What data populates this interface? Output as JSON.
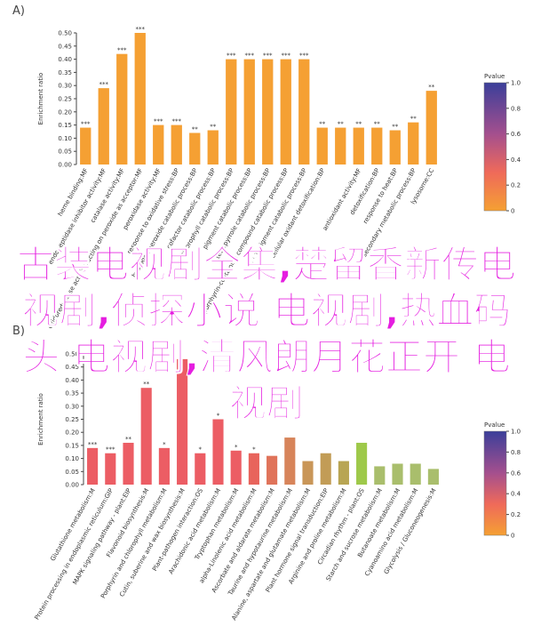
{
  "chart_data": [
    {
      "type": "bar",
      "panel": "A)",
      "ylabel": "Enrichment ratio",
      "color": "#f5a033",
      "categories": [
        "heme binding:MF",
        "endopeptidase inhibitor activity:MF",
        "catalase activity:MF",
        "oxidoreductase activity, acting on peroxide as acceptor:MF",
        "peroxidase activity:MF",
        "response to oxidative stress:BP",
        "hydrogen peroxide catabolic process:BP",
        "cofactor catabolic process:BP",
        "chlorophyll catabolic process:BP",
        "pigment catabolic process:BP",
        "tetrapyrrole catabolic process:BP",
        "porphyrin-containing compound catabolic process:BP",
        "cellular pigment catabolic process:BP",
        "cellular oxidant detoxification:BP",
        null,
        "antioxidant activity:MF",
        "detoxification:BP",
        "response to heat:BP",
        "secondary metabolic process:BP",
        "lysosome:CC"
      ],
      "values": [
        0.14,
        0.29,
        0.42,
        0.5,
        0.15,
        0.15,
        0.12,
        0.13,
        0.4,
        0.4,
        0.4,
        0.4,
        0.4,
        0.14,
        0.14,
        0.14,
        0.14,
        0.13,
        0.16,
        0.28
      ],
      "annotations": [
        "***",
        "***",
        "***",
        "***",
        "***",
        "***",
        "**",
        "**",
        "***",
        "***",
        "***",
        "***",
        "***",
        "**",
        "**",
        "**",
        "**",
        "**",
        "**",
        "**"
      ],
      "ylim": [
        0,
        0.5
      ],
      "yticks": [
        {
          "value": 0,
          "label": "0.00"
        },
        {
          "value": 0.05,
          "label": "0.05"
        },
        {
          "value": 0.1,
          "label": "0.10"
        },
        {
          "value": 0.15,
          "label": "0.15"
        },
        {
          "value": 0.2,
          "label": "0.20"
        },
        {
          "value": 0.25,
          "label": "0.25"
        },
        {
          "value": 0.3,
          "label": "0.30"
        },
        {
          "value": 0.35,
          "label": "0.35"
        },
        {
          "value": 0.4,
          "label": "0.40"
        },
        {
          "value": 0.45,
          "label": "0.45"
        },
        {
          "value": 0.5,
          "label": "0.50"
        }
      ],
      "colorbar": {
        "title": "Pvalue",
        "lim": [
          0,
          1
        ],
        "ticks": [
          0,
          0.2,
          0.4,
          0.6,
          0.8,
          {
            "value": 1,
            "label": "1.0"
          }
        ]
      }
    },
    {
      "type": "bar",
      "panel": "B)",
      "ylabel": "Enrichment ratio",
      "categories": [
        "Glutathione metabolism:M",
        "Protein processing in endoplasmic reticulum:GIP",
        "MAPK signaling pathway - plant:EIP",
        "Flavonoid biosynthesis:M",
        "Porphyrin and chlorophyll metabolism:M",
        "Cutin, suberine and wax biosynthesis:M",
        "Plant-pathogen interaction:OS",
        "Arachidonic acid metabolism:M",
        "Tryptophan metabolism:M",
        "alpha-Linolenic acid metabolism:M",
        "Ascorbate and aldarate metabolism:M",
        "Taurine and hypotaurine metabolism:M",
        "Alanine, aspartate and glutamate metabolism:M",
        "Plant hormone signal transduction:EIP",
        "Arginine and proline metabolism:M",
        "Circadian rhythm - plant:OS",
        "Starch and sucrose metabolism:M",
        "Butanoate metabolism:M",
        "Cyanoamino acid metabolism:M",
        "Glycolysis / Gluconeogenesis:M"
      ],
      "values": [
        0.14,
        0.12,
        0.16,
        0.37,
        0.14,
        0.48,
        0.12,
        0.25,
        0.13,
        0.12,
        0.11,
        0.18,
        0.09,
        0.12,
        0.09,
        0.16,
        0.07,
        0.08,
        0.08,
        0.06
      ],
      "annotations": [
        "***",
        "***",
        "**",
        "**",
        "*",
        null,
        "*",
        "*",
        "*",
        "*",
        null,
        null,
        null,
        null,
        null,
        null,
        null,
        null,
        null,
        null
      ],
      "colors": [
        "#ec5d64",
        "#ec5d64",
        "#ec5d64",
        "#ec5d64",
        "#ec5d64",
        "#ec5d64",
        "#ec5d64",
        "#ec5d64",
        "#ec5d64",
        "#e8645c",
        "#e0735a",
        "#d7845a",
        "#c99658",
        "#c29c56",
        "#b8a553",
        "#9ec94a",
        "#a9be6c",
        "#a9be6c",
        "#a9be6c",
        "#a9be6c"
      ],
      "ylim": [
        0,
        0.5
      ],
      "yticks": [
        {
          "value": 0,
          "label": "0.00"
        },
        {
          "value": 0.05,
          "label": "0.05"
        },
        {
          "value": 0.1,
          "label": "0.10"
        },
        {
          "value": 0.15,
          "label": "0.15"
        },
        {
          "value": 0.2,
          "label": "0.20"
        },
        {
          "value": 0.25,
          "label": "0.25"
        },
        {
          "value": 0.3,
          "label": "0.30"
        },
        {
          "value": 0.35,
          "label": "0.35"
        },
        {
          "value": 0.4,
          "label": "0.40"
        },
        {
          "value": 0.45,
          "label": "0.45"
        },
        {
          "value": 0.5,
          "label": "0.50"
        }
      ],
      "colorbar": {
        "title": "Pvalue",
        "lim": [
          0,
          1
        ],
        "ticks": [
          0,
          0.2,
          0.4,
          0.6,
          0.8,
          {
            "value": 1,
            "label": "1.0"
          }
        ]
      }
    }
  ],
  "overlay_text": "古装电视剧全集,楚留香新传电视剧,侦探小说 电视剧,热血码头 电视剧,清风朗月花正开 电视剧"
}
